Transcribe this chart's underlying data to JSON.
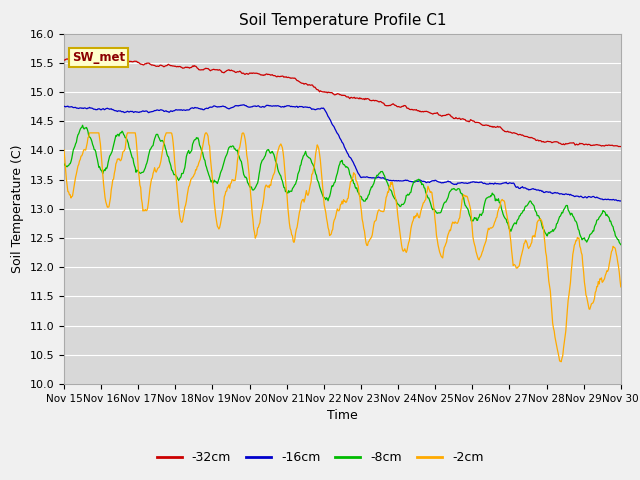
{
  "title": "Soil Temperature Profile C1",
  "xlabel": "Time",
  "ylabel": "Soil Temperature (C)",
  "ylim": [
    10.0,
    16.0
  ],
  "yticks": [
    10.0,
    10.5,
    11.0,
    11.5,
    12.0,
    12.5,
    13.0,
    13.5,
    14.0,
    14.5,
    15.0,
    15.5,
    16.0
  ],
  "xtick_labels": [
    "Nov 15",
    "Nov 16",
    "Nov 17",
    "Nov 18",
    "Nov 19",
    "Nov 20",
    "Nov 21",
    "Nov 22",
    "Nov 23",
    "Nov 24",
    "Nov 25",
    "Nov 26",
    "Nov 27",
    "Nov 28",
    "Nov 29",
    "Nov 30"
  ],
  "colors": {
    "-32cm": "#cc0000",
    "-16cm": "#0000cc",
    "-8cm": "#00bb00",
    "-2cm": "#ffaa00"
  },
  "legend_label": "SW_met",
  "bg_color": "#d8d8d8",
  "fig_bg": "#f0f0f0"
}
